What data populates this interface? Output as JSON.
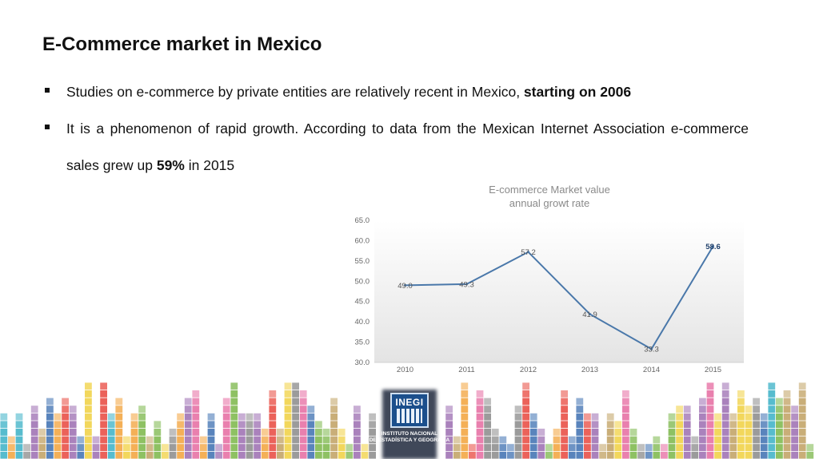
{
  "slide": {
    "title": "E-Commerce market in Mexico",
    "bullets": [
      {
        "text": "Studies on e-commerce by private entities are relatively recent in Mexico, ",
        "bold": "starting on 2006",
        "tail": ""
      },
      {
        "text": "It is a phenomenon of rapid growth. According to data from the Mexican Internet Association e-commerce sales grew up ",
        "bold": "59%",
        "tail": " in 2015"
      }
    ]
  },
  "chart_data": {
    "type": "line",
    "title": "E-commerce Market value",
    "subtitle": "annual growt rate",
    "categories": [
      "2010",
      "2011",
      "2012",
      "2013",
      "2014",
      "2015"
    ],
    "series": [
      {
        "values": [
          49.0,
          49.3,
          57.2,
          41.9,
          33.3,
          58.6
        ],
        "labels": [
          "49.0",
          "49.3",
          "57.2",
          "41.9",
          "33.3",
          "58.6"
        ],
        "color": "#4a78aa"
      }
    ],
    "yticks": [
      "30.0",
      "35.0",
      "40.0",
      "45.0",
      "50.0",
      "55.0",
      "60.0",
      "65.0"
    ],
    "ylim": [
      30,
      65
    ],
    "grid": false,
    "legend": "none"
  },
  "logo": {
    "mark": "INEGI",
    "line1": "INSTITUTO NACIONAL",
    "line2": "DE ESTADÍSTICA Y GEOGRAFÍA"
  },
  "colors": {
    "palette": [
      "#3c6fb0",
      "#e8473d",
      "#f2a23a",
      "#7ab648",
      "#9b6cb0",
      "#3ab0c6",
      "#e56aa0",
      "#c0a060",
      "#8a8a8a",
      "#f0d040"
    ]
  }
}
